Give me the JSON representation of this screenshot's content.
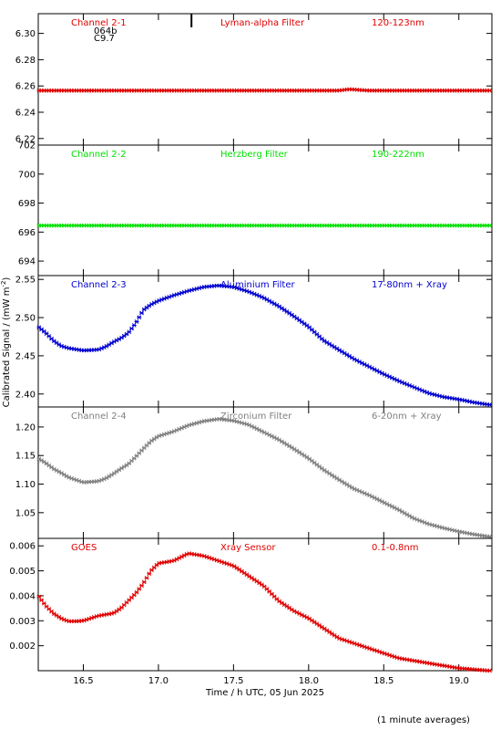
{
  "chart_data": {
    "type": "scatter",
    "xlabel": "Time / h UTC, 05 Jun 2025",
    "ylabel": "Calibrated Signal / (mW m",
    "ylabel_superscript": "-2",
    "ylabel_suffix": ")",
    "footnote": "(1 minute averages)",
    "xlim": [
      16.2,
      19.22
    ],
    "xticks": [
      "16.5",
      "17.0",
      "17.5",
      "18.0",
      "18.5",
      "19.0"
    ],
    "xtick_values": [
      16.5,
      17.0,
      17.5,
      18.0,
      18.5,
      19.0
    ],
    "panels": [
      {
        "channel": "Channel 2-1",
        "filter": "Lyman-alpha Filter",
        "band": "120-123nm",
        "color": "#e00000",
        "ylim": [
          6.215,
          6.315
        ],
        "yticks": [
          "6.22",
          "6.24",
          "6.26",
          "6.28",
          "6.30"
        ],
        "ytick_values": [
          6.22,
          6.24,
          6.26,
          6.28,
          6.3
        ],
        "annotation": [
          "064b",
          "C9.7"
        ],
        "marker_x": 17.22,
        "points": [
          [
            16.2,
            6.2565
          ],
          [
            16.4,
            6.2565
          ],
          [
            16.6,
            6.2565
          ],
          [
            16.8,
            6.2565
          ],
          [
            17.0,
            6.2565
          ],
          [
            17.2,
            6.2565
          ],
          [
            17.4,
            6.2565
          ],
          [
            17.6,
            6.2565
          ],
          [
            17.8,
            6.2565
          ],
          [
            18.0,
            6.2565
          ],
          [
            18.2,
            6.2565
          ],
          [
            18.27,
            6.2575
          ],
          [
            18.4,
            6.2565
          ],
          [
            18.6,
            6.2565
          ],
          [
            18.8,
            6.2565
          ],
          [
            19.0,
            6.2565
          ],
          [
            19.2,
            6.2565
          ]
        ]
      },
      {
        "channel": "Channel 2-2",
        "filter": "Herzberg Filter",
        "band": "190-222nm",
        "color": "#00e000",
        "ylim": [
          693.0,
          702.0
        ],
        "yticks": [
          "694",
          "696",
          "698",
          "700",
          "702"
        ],
        "ytick_values": [
          694,
          696,
          698,
          700,
          702
        ],
        "points": [
          [
            16.2,
            696.45
          ],
          [
            16.4,
            696.45
          ],
          [
            16.6,
            696.45
          ],
          [
            16.8,
            696.45
          ],
          [
            17.0,
            696.45
          ],
          [
            17.2,
            696.45
          ],
          [
            17.4,
            696.45
          ],
          [
            17.6,
            696.45
          ],
          [
            17.8,
            696.45
          ],
          [
            18.0,
            696.45
          ],
          [
            18.2,
            696.45
          ],
          [
            18.4,
            696.45
          ],
          [
            18.6,
            696.45
          ],
          [
            18.8,
            696.45
          ],
          [
            19.0,
            696.45
          ],
          [
            19.2,
            696.45
          ]
        ]
      },
      {
        "channel": "Channel 2-3",
        "filter": "Aluminium Filter",
        "band": "17-80nm + Xray",
        "color": "#0000d0",
        "ylim": [
          2.383,
          2.555
        ],
        "yticks": [
          "2.40",
          "2.45",
          "2.50",
          "2.55"
        ],
        "ytick_values": [
          2.4,
          2.45,
          2.5,
          2.55
        ],
        "points": [
          [
            16.2,
            2.488
          ],
          [
            16.25,
            2.48
          ],
          [
            16.3,
            2.47
          ],
          [
            16.35,
            2.463
          ],
          [
            16.4,
            2.46
          ],
          [
            16.5,
            2.457
          ],
          [
            16.6,
            2.458
          ],
          [
            16.65,
            2.462
          ],
          [
            16.7,
            2.468
          ],
          [
            16.75,
            2.473
          ],
          [
            16.8,
            2.48
          ],
          [
            16.85,
            2.493
          ],
          [
            16.9,
            2.51
          ],
          [
            16.95,
            2.517
          ],
          [
            17.0,
            2.522
          ],
          [
            17.1,
            2.529
          ],
          [
            17.2,
            2.535
          ],
          [
            17.3,
            2.54
          ],
          [
            17.4,
            2.542
          ],
          [
            17.5,
            2.54
          ],
          [
            17.6,
            2.534
          ],
          [
            17.7,
            2.526
          ],
          [
            17.8,
            2.515
          ],
          [
            17.9,
            2.502
          ],
          [
            18.0,
            2.488
          ],
          [
            18.1,
            2.47
          ],
          [
            18.2,
            2.458
          ],
          [
            18.3,
            2.446
          ],
          [
            18.4,
            2.436
          ],
          [
            18.5,
            2.426
          ],
          [
            18.6,
            2.417
          ],
          [
            18.7,
            2.409
          ],
          [
            18.8,
            2.401
          ],
          [
            18.9,
            2.396
          ],
          [
            19.0,
            2.393
          ],
          [
            19.1,
            2.389
          ],
          [
            19.2,
            2.386
          ]
        ]
      },
      {
        "channel": "Channel 2-4",
        "filter": "Zirconium Filter",
        "band": "6-20nm + Xray",
        "color": "#808080",
        "ylim": [
          1.005,
          1.235
        ],
        "yticks": [
          "1.05",
          "1.10",
          "1.15",
          "1.20"
        ],
        "ytick_values": [
          1.05,
          1.1,
          1.15,
          1.2
        ],
        "points": [
          [
            16.2,
            1.145
          ],
          [
            16.25,
            1.137
          ],
          [
            16.3,
            1.127
          ],
          [
            16.35,
            1.12
          ],
          [
            16.4,
            1.112
          ],
          [
            16.5,
            1.103
          ],
          [
            16.6,
            1.105
          ],
          [
            16.65,
            1.11
          ],
          [
            16.7,
            1.118
          ],
          [
            16.75,
            1.127
          ],
          [
            16.8,
            1.135
          ],
          [
            16.85,
            1.148
          ],
          [
            16.9,
            1.162
          ],
          [
            16.95,
            1.175
          ],
          [
            17.0,
            1.184
          ],
          [
            17.1,
            1.192
          ],
          [
            17.2,
            1.203
          ],
          [
            17.3,
            1.21
          ],
          [
            17.4,
            1.214
          ],
          [
            17.5,
            1.211
          ],
          [
            17.6,
            1.204
          ],
          [
            17.7,
            1.191
          ],
          [
            17.8,
            1.178
          ],
          [
            17.9,
            1.162
          ],
          [
            18.0,
            1.145
          ],
          [
            18.1,
            1.125
          ],
          [
            18.2,
            1.108
          ],
          [
            18.3,
            1.092
          ],
          [
            18.4,
            1.081
          ],
          [
            18.5,
            1.068
          ],
          [
            18.6,
            1.055
          ],
          [
            18.7,
            1.04
          ],
          [
            18.8,
            1.03
          ],
          [
            18.9,
            1.023
          ],
          [
            19.0,
            1.017
          ],
          [
            19.1,
            1.012
          ],
          [
            19.2,
            1.008
          ]
        ]
      },
      {
        "channel": "GOES",
        "filter": "Xray Sensor",
        "band": "0.1-0.8nm",
        "color": "#e00000",
        "ylim": [
          0.001,
          0.0063
        ],
        "yticks": [
          "0.002",
          "0.003",
          "0.004",
          "0.005",
          "0.006"
        ],
        "ytick_values": [
          0.002,
          0.003,
          0.004,
          0.005,
          0.006
        ],
        "points": [
          [
            16.2,
            0.004
          ],
          [
            16.25,
            0.0036
          ],
          [
            16.3,
            0.0033
          ],
          [
            16.35,
            0.0031
          ],
          [
            16.4,
            0.00298
          ],
          [
            16.45,
            0.00298
          ],
          [
            16.5,
            0.003
          ],
          [
            16.6,
            0.0032
          ],
          [
            16.7,
            0.0033
          ],
          [
            16.75,
            0.0035
          ],
          [
            16.8,
            0.0038
          ],
          [
            16.85,
            0.0041
          ],
          [
            16.9,
            0.0045
          ],
          [
            16.95,
            0.005
          ],
          [
            17.0,
            0.0053
          ],
          [
            17.1,
            0.0054
          ],
          [
            17.2,
            0.0057
          ],
          [
            17.3,
            0.0056
          ],
          [
            17.4,
            0.0054
          ],
          [
            17.5,
            0.0052
          ],
          [
            17.6,
            0.0048
          ],
          [
            17.7,
            0.0044
          ],
          [
            17.8,
            0.0038
          ],
          [
            17.9,
            0.0034
          ],
          [
            18.0,
            0.0031
          ],
          [
            18.1,
            0.0027
          ],
          [
            18.2,
            0.0023
          ],
          [
            18.3,
            0.0021
          ],
          [
            18.4,
            0.0019
          ],
          [
            18.5,
            0.0017
          ],
          [
            18.6,
            0.0015
          ],
          [
            18.7,
            0.0014
          ],
          [
            18.8,
            0.0013
          ],
          [
            18.9,
            0.0012
          ],
          [
            19.0,
            0.0011
          ],
          [
            19.1,
            0.00105
          ],
          [
            19.2,
            0.001
          ]
        ]
      }
    ]
  }
}
